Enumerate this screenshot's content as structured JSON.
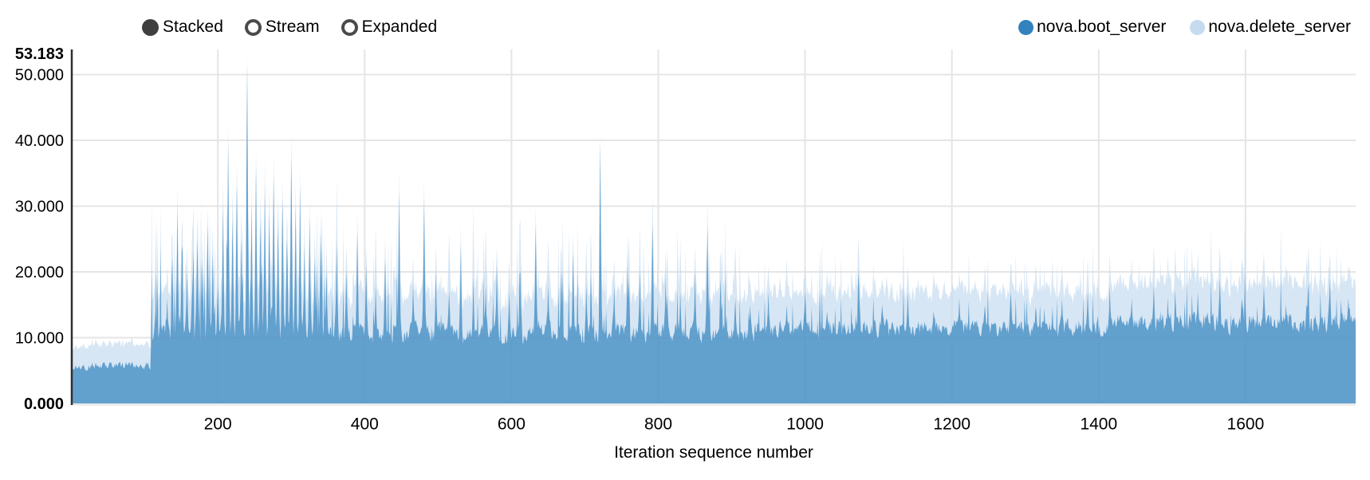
{
  "chart_data": {
    "type": "area",
    "stacked": true,
    "controls": [
      {
        "label": "Stacked",
        "selected": true
      },
      {
        "label": "Stream",
        "selected": false
      },
      {
        "label": "Expanded",
        "selected": false
      }
    ],
    "series": [
      {
        "name": "nova.boot_server",
        "color": "#3182bd"
      },
      {
        "name": "nova.delete_server",
        "color": "#c6dbef"
      }
    ],
    "xlabel": "Iteration sequence number",
    "ylabel": "",
    "xlim": [
      1,
      1750
    ],
    "ylim": [
      0,
      53.183
    ],
    "y_max_label": "53.183",
    "grid": true,
    "legend_position": "top-right",
    "x_ticks": [
      {
        "value": 200,
        "label": "200"
      },
      {
        "value": 400,
        "label": "400"
      },
      {
        "value": 600,
        "label": "600"
      },
      {
        "value": 800,
        "label": "800"
      },
      {
        "value": 1000,
        "label": "1000"
      },
      {
        "value": 1200,
        "label": "1200"
      },
      {
        "value": 1400,
        "label": "1400"
      },
      {
        "value": 1600,
        "label": "1600"
      }
    ],
    "y_ticks": [
      {
        "value": 0,
        "label": "0.000",
        "bold": true
      },
      {
        "value": 10,
        "label": "10.000",
        "bold": false
      },
      {
        "value": 20,
        "label": "20.000",
        "bold": false
      },
      {
        "value": 30,
        "label": "30.000",
        "bold": false
      },
      {
        "value": 40,
        "label": "40.000",
        "bold": false
      },
      {
        "value": 50,
        "label": "50.000",
        "bold": false
      },
      {
        "value": 53.183,
        "label": "53.183",
        "bold": true
      }
    ],
    "area_fill_colors": {
      "boot_rgba": "rgba(49,130,189,0.7)",
      "delete_rgba": "rgba(198,219,239,0.7)"
    },
    "gridline_color": "#e5e5e5",
    "axis_line_color": "#2f2f2f",
    "profile": {
      "seed": 97,
      "segments": [
        {
          "range": [
            1,
            108
          ],
          "boot": [
            4.8,
            6.6
          ],
          "del": [
            2.6,
            3.8
          ],
          "spike_p": 0.02,
          "spike_amp": 2
        },
        {
          "range": [
            109,
            350
          ],
          "boot": [
            8.5,
            13.5
          ],
          "del": [
            3.5,
            7.5
          ],
          "spike_p": 0.25,
          "spike_amp": 14
        },
        {
          "range": [
            351,
            930
          ],
          "boot": [
            8.5,
            13.0
          ],
          "del": [
            4.0,
            7.5
          ],
          "spike_p": 0.12,
          "spike_amp": 9
        },
        {
          "range": [
            931,
            1420
          ],
          "boot": [
            9.5,
            13.5
          ],
          "del": [
            4.0,
            7.0
          ],
          "spike_p": 0.08,
          "spike_amp": 6
        },
        {
          "range": [
            1421,
            1750
          ],
          "boot": [
            10.0,
            14.5
          ],
          "del": [
            4.5,
            7.5
          ],
          "spike_p": 0.1,
          "spike_amp": 7
        }
      ],
      "peaks": [
        [
          131,
          16,
          21
        ],
        [
          138,
          22,
          26
        ],
        [
          145,
          29.5,
          33
        ],
        [
          151,
          24,
          27
        ],
        [
          158,
          20,
          24
        ],
        [
          165,
          17,
          26
        ],
        [
          172,
          25,
          28.5
        ],
        [
          179,
          21,
          25
        ],
        [
          186,
          27,
          30
        ],
        [
          193,
          23,
          27
        ],
        [
          200,
          18,
          29
        ],
        [
          207,
          30,
          34
        ],
        [
          214,
          39.5,
          43
        ],
        [
          220,
          28,
          32
        ],
        [
          226,
          33,
          36
        ],
        [
          232,
          25,
          30
        ],
        [
          240,
          51.5,
          53.183
        ],
        [
          246,
          30,
          34
        ],
        [
          252,
          36,
          39
        ],
        [
          258,
          28,
          32
        ],
        [
          264,
          33,
          37
        ],
        [
          270,
          29,
          33
        ],
        [
          276,
          35,
          38
        ],
        [
          282,
          27,
          31
        ],
        [
          288,
          31,
          34
        ],
        [
          294,
          25,
          29
        ],
        [
          300,
          37.5,
          41
        ],
        [
          306,
          30,
          34
        ],
        [
          312,
          33,
          36
        ],
        [
          318,
          24,
          28
        ],
        [
          325,
          28,
          31
        ],
        [
          332,
          22,
          26
        ],
        [
          340,
          26,
          29
        ],
        [
          348,
          20,
          24
        ],
        [
          362,
          24,
          34
        ],
        [
          375,
          20,
          24
        ],
        [
          390,
          26,
          29
        ],
        [
          402,
          21,
          24
        ],
        [
          415,
          18,
          27
        ],
        [
          428,
          22,
          25
        ],
        [
          447,
          32,
          35.5
        ],
        [
          466,
          18,
          22
        ],
        [
          481,
          31,
          34
        ],
        [
          497,
          20,
          24
        ],
        [
          515,
          17,
          26
        ],
        [
          531,
          24,
          27
        ],
        [
          548,
          19,
          30
        ],
        [
          565,
          18,
          27
        ],
        [
          580,
          21,
          24
        ],
        [
          597,
          17,
          22
        ],
        [
          612,
          20,
          28
        ],
        [
          633,
          27,
          30
        ],
        [
          650,
          18,
          25
        ],
        [
          668,
          20,
          24
        ],
        [
          684,
          23,
          26
        ],
        [
          702,
          18,
          25
        ],
        [
          721,
          39.5,
          41
        ],
        [
          740,
          18,
          22
        ],
        [
          758,
          21,
          25
        ],
        [
          775,
          20,
          27
        ],
        [
          792,
          27,
          31.5
        ],
        [
          810,
          19,
          23
        ],
        [
          830,
          17,
          25
        ],
        [
          850,
          20,
          24
        ],
        [
          867,
          27,
          30.5
        ],
        [
          885,
          19,
          23
        ],
        [
          905,
          16,
          24
        ],
        [
          925,
          15,
          19
        ],
        [
          950,
          17,
          21
        ],
        [
          975,
          15,
          22
        ],
        [
          1000,
          17,
          21
        ],
        [
          1030,
          14,
          20
        ],
        [
          1073,
          20,
          25
        ],
        [
          1105,
          15,
          19
        ],
        [
          1140,
          17,
          21
        ],
        [
          1175,
          14,
          20
        ],
        [
          1210,
          16,
          20
        ],
        [
          1245,
          15,
          21
        ],
        [
          1280,
          17,
          21
        ],
        [
          1315,
          14,
          20
        ],
        [
          1350,
          16,
          21
        ],
        [
          1385,
          17,
          22
        ],
        [
          1415,
          18,
          23
        ],
        [
          1445,
          16,
          22
        ],
        [
          1475,
          18,
          24
        ],
        [
          1505,
          15,
          21
        ],
        [
          1535,
          17,
          23
        ],
        [
          1565,
          19,
          24
        ],
        [
          1595,
          16,
          22
        ],
        [
          1625,
          18,
          23
        ],
        [
          1655,
          15,
          21
        ],
        [
          1685,
          17,
          22
        ],
        [
          1715,
          19,
          23
        ],
        [
          1740,
          16,
          21
        ]
      ]
    }
  }
}
